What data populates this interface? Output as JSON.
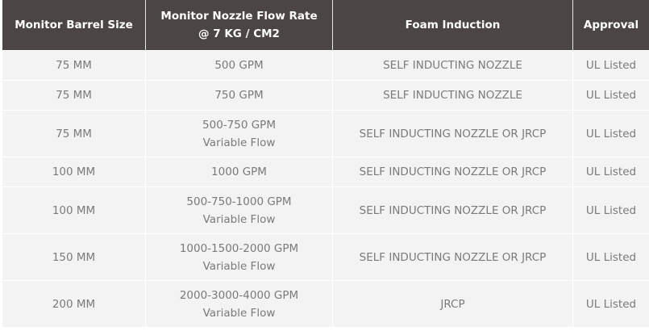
{
  "table": {
    "header": [
      [
        "Monitor Barrel Size"
      ],
      [
        "Monitor Nozzle Flow Rate",
        "@ 7 KG / CM2"
      ],
      [
        "Foam Induction"
      ],
      [
        "Approval"
      ]
    ],
    "rows": [
      [
        [
          "75 MM"
        ],
        [
          "500 GPM"
        ],
        [
          "SELF INDUCTING NOZZLE"
        ],
        [
          "UL Listed"
        ]
      ],
      [
        [
          "75 MM"
        ],
        [
          "750 GPM"
        ],
        [
          "SELF INDUCTING NOZZLE"
        ],
        [
          "UL Listed"
        ]
      ],
      [
        [
          "75 MM"
        ],
        [
          "500-750 GPM",
          "Variable Flow"
        ],
        [
          "SELF INDUCTING NOZZLE OR JRCP"
        ],
        [
          "UL Listed"
        ]
      ],
      [
        [
          "100 MM"
        ],
        [
          "1000 GPM"
        ],
        [
          "SELF INDUCTING NOZZLE OR JRCP"
        ],
        [
          "UL Listed"
        ]
      ],
      [
        [
          "100 MM"
        ],
        [
          "500-750-1000 GPM",
          "Variable Flow"
        ],
        [
          "SELF INDUCTING NOZZLE OR JRCP"
        ],
        [
          "UL Listed"
        ]
      ],
      [
        [
          "150 MM"
        ],
        [
          "1000-1500-2000 GPM",
          "Variable Flow"
        ],
        [
          "SELF INDUCTING NOZZLE OR JRCP"
        ],
        [
          "UL Listed"
        ]
      ],
      [
        [
          "200 MM"
        ],
        [
          "2000-3000-4000 GPM",
          "Variable Flow"
        ],
        [
          "JRCP"
        ],
        [
          "UL Listed"
        ]
      ]
    ]
  }
}
